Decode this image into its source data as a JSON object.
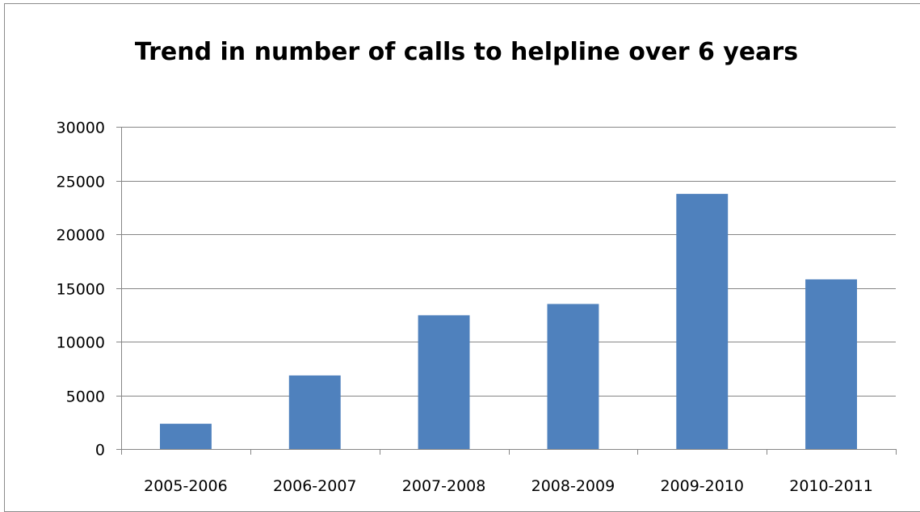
{
  "chart_data": {
    "type": "bar",
    "title": "Trend in number of calls to helpline over 6 years",
    "xlabel": "",
    "ylabel": "",
    "categories": [
      "2005-2006",
      "2006-2007",
      "2007-2008",
      "2008-2009",
      "2009-2010",
      "2010-2011"
    ],
    "values": [
      2350,
      6850,
      12450,
      13500,
      23750,
      15800
    ],
    "ylim": [
      0,
      30000
    ],
    "yticks": [
      0,
      5000,
      10000,
      15000,
      20000,
      25000,
      30000
    ],
    "ytick_labels": [
      "0",
      "5000",
      "10000",
      "15000",
      "20000",
      "25000",
      "30000"
    ],
    "grid": true,
    "legend": "none",
    "bar_color": "#4f81bd",
    "gridline_color": "#868686"
  }
}
